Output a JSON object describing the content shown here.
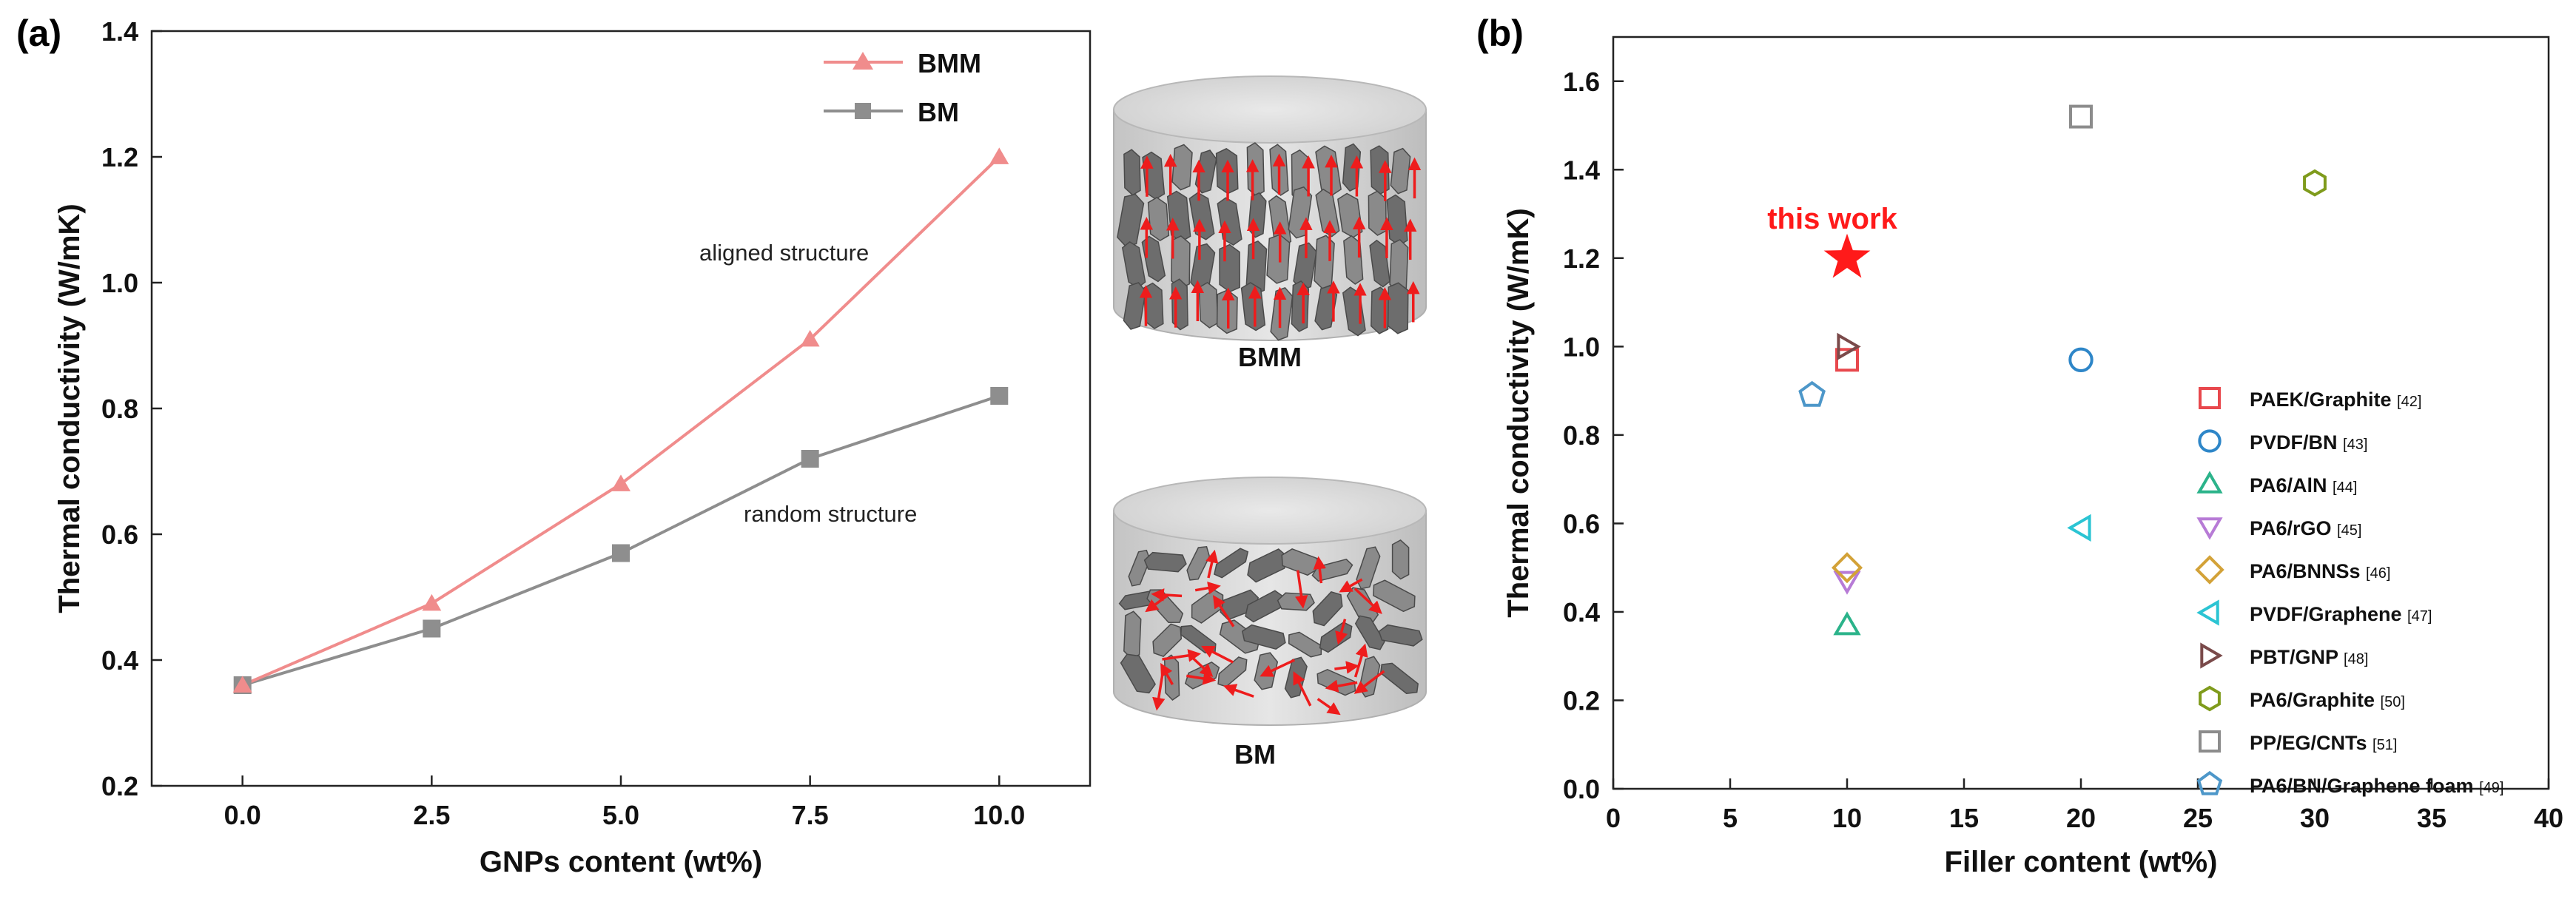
{
  "chart_data": [
    {
      "panel_label": "(a)",
      "type": "line",
      "x": [
        0.0,
        2.5,
        5.0,
        7.5,
        10.0
      ],
      "x_tick_labels": [
        "0.0",
        "2.5",
        "5.0",
        "7.5",
        "10.0"
      ],
      "xlabel": "GNPs content (wt%)",
      "ylabel": "Thermal conductivity (W/mK)",
      "xlim": [
        -1.2,
        11.2
      ],
      "ylim": [
        0.2,
        1.4
      ],
      "y_ticks": [
        0.2,
        0.4,
        0.6,
        0.8,
        1.0,
        1.2,
        1.4
      ],
      "y_tick_labels": [
        "0.2",
        "0.4",
        "0.6",
        "0.8",
        "1.0",
        "1.2",
        "1.4"
      ],
      "legend_position": "top-right",
      "series": [
        {
          "name": "BMM",
          "marker": "triangle",
          "color": "#f08c8c",
          "values": [
            0.36,
            0.49,
            0.68,
            0.91,
            1.2
          ]
        },
        {
          "name": "BM",
          "marker": "square",
          "color": "#8e8e8e",
          "values": [
            0.36,
            0.45,
            0.57,
            0.72,
            0.82
          ]
        }
      ],
      "annotations": [
        "aligned structure",
        "random structure"
      ],
      "illustrations": [
        {
          "caption": "BMM",
          "structure": "aligned",
          "icon": "aligned-filler-cylinder-icon"
        },
        {
          "caption": "BM",
          "structure": "random",
          "icon": "random-filler-cylinder-icon"
        }
      ]
    },
    {
      "panel_label": "(b)",
      "type": "scatter",
      "xlabel": "Filler content (wt%)",
      "ylabel": "Thermal conductivity (W/mK)",
      "xlim": [
        0,
        40
      ],
      "ylim": [
        0.0,
        1.7
      ],
      "x_ticks": [
        0,
        5,
        10,
        15,
        20,
        25,
        30,
        35,
        40
      ],
      "x_tick_labels": [
        "0",
        "5",
        "10",
        "15",
        "20",
        "25",
        "30",
        "35",
        "40"
      ],
      "y_ticks": [
        0.0,
        0.2,
        0.4,
        0.6,
        0.8,
        1.0,
        1.2,
        1.4,
        1.6
      ],
      "y_tick_labels": [
        "0.0",
        "0.2",
        "0.4",
        "0.6",
        "0.8",
        "1.0",
        "1.2",
        "1.4",
        "1.6"
      ],
      "legend_position": "right",
      "highlight": {
        "label": "this work",
        "x": 10,
        "y": 1.2,
        "marker": "star",
        "color": "#ff1a1a"
      },
      "series": [
        {
          "name": "PAEK/Graphite",
          "ref": "[42]",
          "marker": "square",
          "color": "#e8484d",
          "x": [
            10
          ],
          "y": [
            0.97
          ]
        },
        {
          "name": "PVDF/BN",
          "ref": "[43]",
          "marker": "circle",
          "color": "#2e86c8",
          "x": [
            20
          ],
          "y": [
            0.97
          ]
        },
        {
          "name": "PA6/AlN",
          "ref": "[44]",
          "marker": "triangle-up",
          "color": "#2bb38a",
          "x": [
            10
          ],
          "y": [
            0.37
          ]
        },
        {
          "name": "PA6/rGO",
          "ref": "[45]",
          "marker": "triangle-down",
          "color": "#b77bd6",
          "x": [
            10
          ],
          "y": [
            0.47
          ]
        },
        {
          "name": "PA6/BNNSs",
          "ref": "[46]",
          "marker": "diamond",
          "color": "#d3a238",
          "x": [
            10
          ],
          "y": [
            0.5
          ]
        },
        {
          "name": "PVDF/Graphene",
          "ref": "[47]",
          "marker": "triangle-left",
          "color": "#2bc4d3",
          "x": [
            20
          ],
          "y": [
            0.59
          ]
        },
        {
          "name": "PBT/GNP",
          "ref": "[48]",
          "marker": "triangle-right",
          "color": "#7a4a4a",
          "x": [
            10
          ],
          "y": [
            1.0
          ]
        },
        {
          "name": "PA6/Graphite",
          "ref": "[50]",
          "marker": "hexagon",
          "color": "#7f9b1c",
          "x": [
            30
          ],
          "y": [
            1.37
          ]
        },
        {
          "name": "PP/EG/CNTs",
          "ref": "[51]",
          "marker": "square",
          "color": "#8c8c8c",
          "x": [
            20
          ],
          "y": [
            1.52
          ]
        },
        {
          "name": "PA6/BN/Graphene foam",
          "ref": "[49]",
          "marker": "pentagon",
          "color": "#4d97c9",
          "x": [
            8.5
          ],
          "y": [
            0.89
          ]
        }
      ]
    }
  ]
}
